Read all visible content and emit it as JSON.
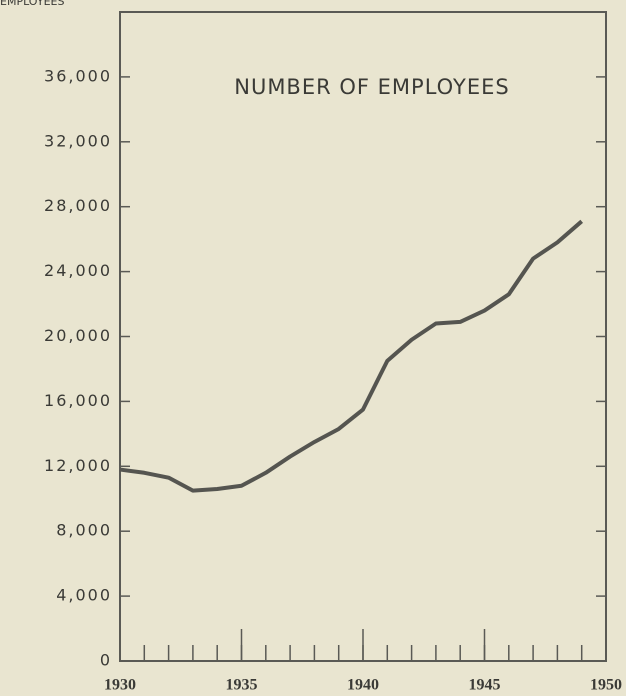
{
  "chart_data": {
    "type": "line",
    "title": "NUMBER OF EMPLOYEES",
    "y_label": "EMPLOYEES",
    "x": [
      1930,
      1931,
      1932,
      1933,
      1934,
      1935,
      1936,
      1937,
      1938,
      1939,
      1940,
      1941,
      1942,
      1943,
      1944,
      1945,
      1946,
      1947,
      1948,
      1949
    ],
    "series": [
      {
        "name": "Employees",
        "color": "#555550",
        "values": [
          11800,
          11600,
          11300,
          10500,
          10600,
          10800,
          11600,
          12600,
          13500,
          14300,
          15500,
          18500,
          19800,
          20800,
          20900,
          21600,
          22600,
          24800,
          25800,
          27100
        ]
      }
    ],
    "xlim": [
      1930,
      1950
    ],
    "xticks": [
      1930,
      1935,
      1940,
      1945,
      1950
    ],
    "ylim": [
      0,
      40000
    ],
    "yticks": [
      0,
      {
        "value": 4000,
        "label": "4,000"
      },
      {
        "value": 8000,
        "label": "8,000"
      },
      {
        "value": 12000,
        "label": "12,000"
      },
      {
        "value": 16000,
        "label": "16,000"
      },
      {
        "value": 20000,
        "label": "20,000"
      },
      {
        "value": 24000,
        "label": "24,000"
      },
      {
        "value": 28000,
        "label": "28,000"
      },
      {
        "value": 32000,
        "label": "32,000"
      },
      {
        "value": 36000,
        "label": "36,000"
      }
    ],
    "grid": false
  }
}
